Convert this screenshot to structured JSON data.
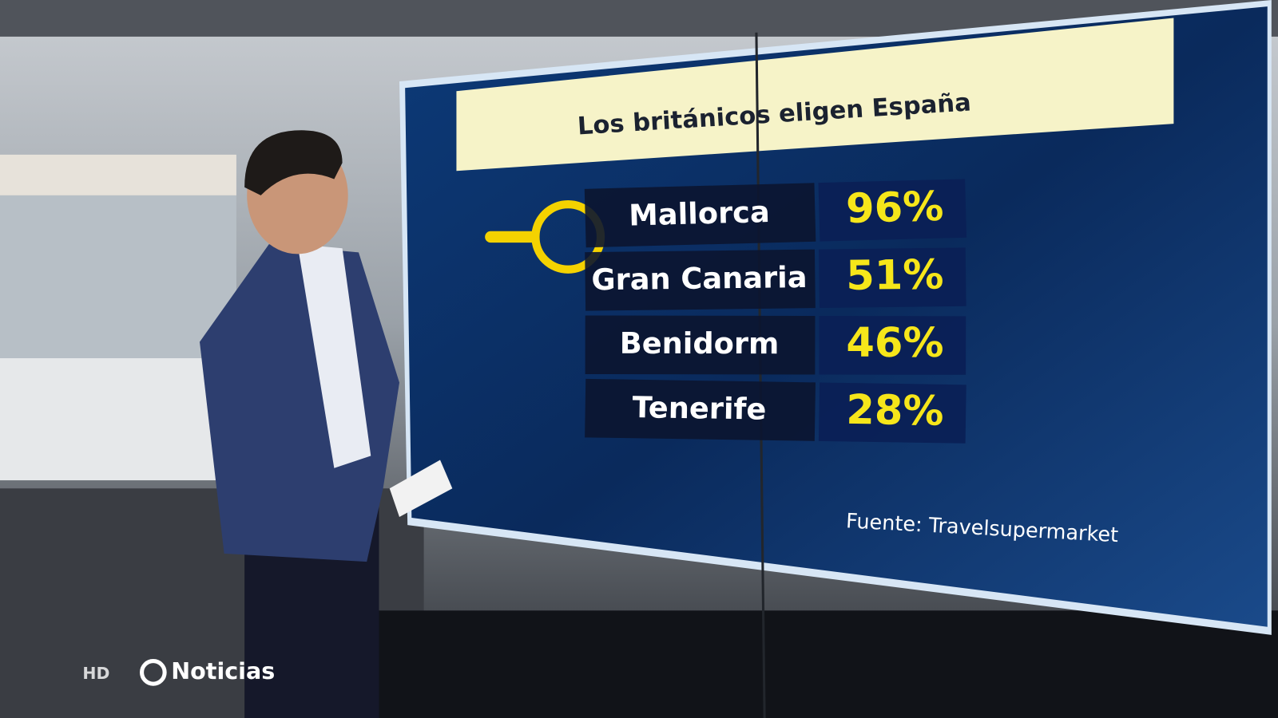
{
  "screen": {
    "title": "Los británicos eligen España",
    "rows": [
      {
        "place": "Mallorca",
        "share": "96%"
      },
      {
        "place": "Gran Canaria",
        "share": "51%"
      },
      {
        "place": "Benidorm",
        "share": "46%"
      },
      {
        "place": "Tenerife",
        "share": "28%"
      }
    ],
    "source": "Fuente: Travelsupermarket"
  },
  "logo": {
    "badge": "HD",
    "brand": "Noticias"
  }
}
